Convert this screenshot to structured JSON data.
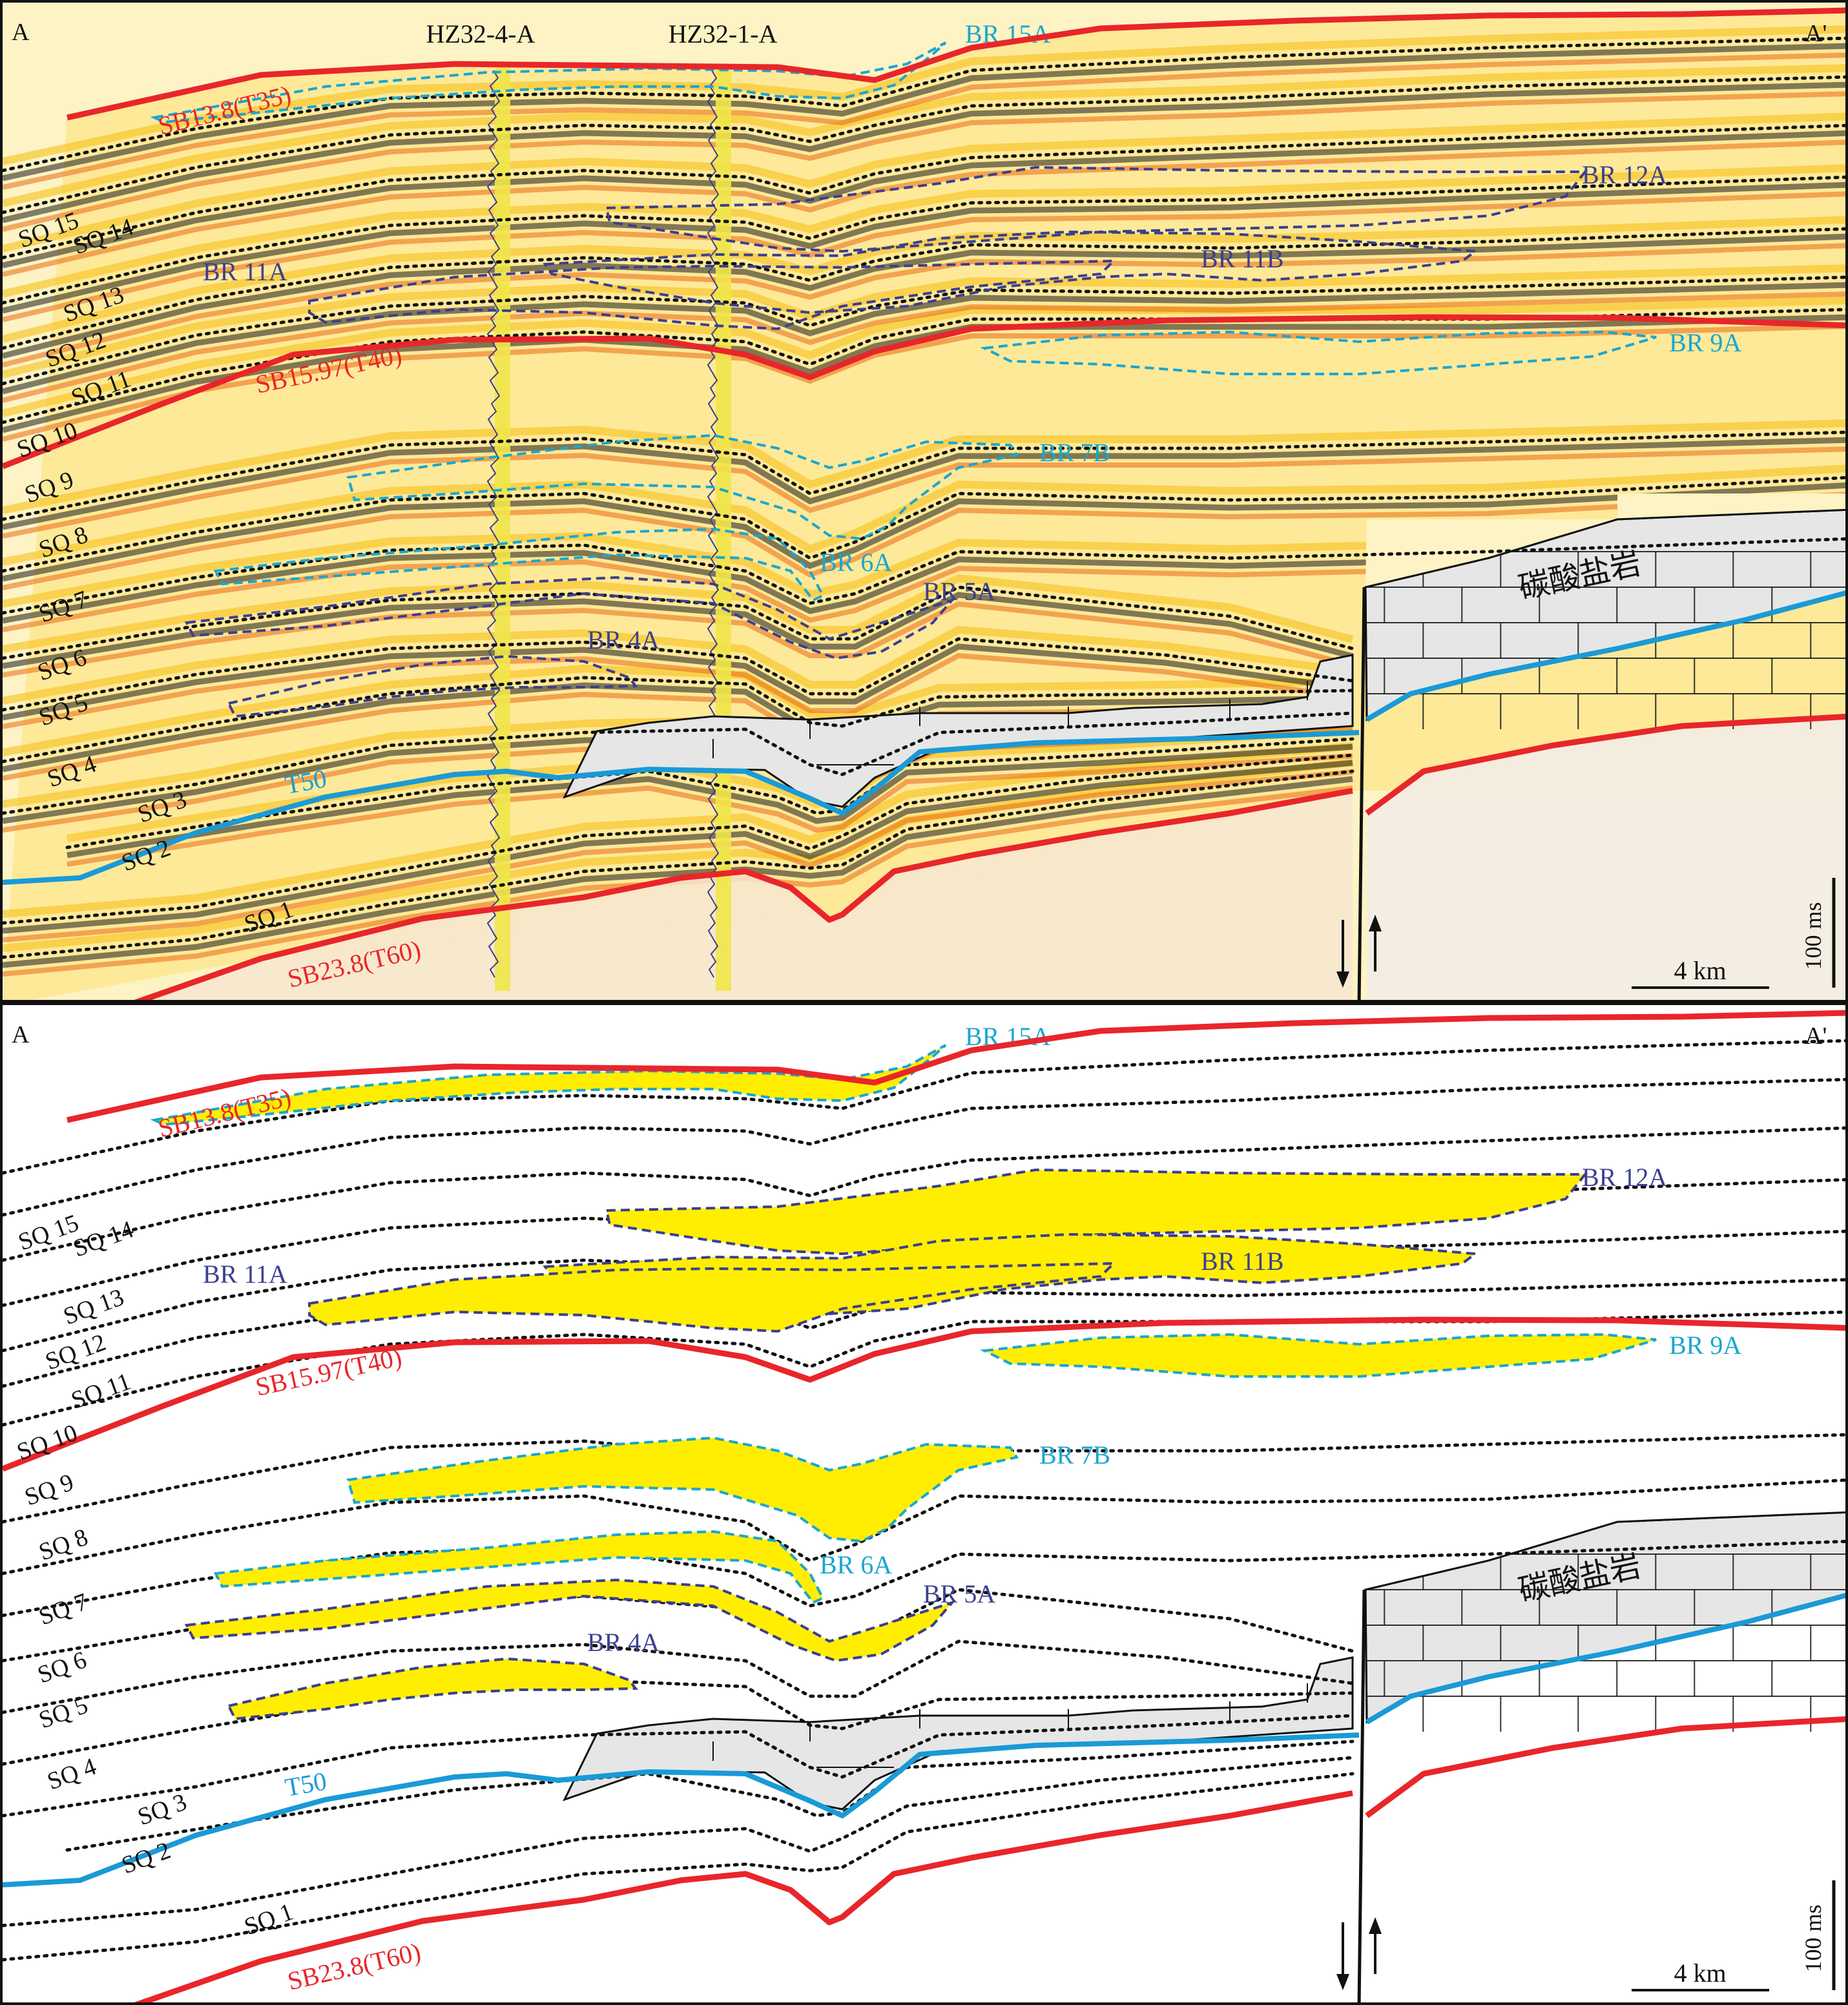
{
  "profile": {
    "start": "A",
    "end": "A'"
  },
  "wells": [
    "HZ32-4-A",
    "HZ32-1-A"
  ],
  "boundaries": {
    "sb13_8": "SB13.8(T35)",
    "sb15_97": "SB15.97(T40)",
    "t50": "T50",
    "sb23_8": "SB23.8(T60)"
  },
  "sequences": [
    "SQ 1",
    "SQ 2",
    "SQ 3",
    "SQ 4",
    "SQ 5",
    "SQ 6",
    "SQ 7",
    "SQ 8",
    "SQ 9",
    "SQ 10",
    "SQ 11",
    "SQ 12",
    "SQ 13",
    "SQ 14",
    "SQ 15"
  ],
  "bodies": {
    "br15a": "BR 15A",
    "br12a": "BR 12A",
    "br11a": "BR 11A",
    "br11b": "BR 11B",
    "br9a": "BR 9A",
    "br7b": "BR 7B",
    "br6a": "BR 6A",
    "br5a": "BR 5A",
    "br4a": "BR 4A"
  },
  "carbonate": "碳酸盐岩",
  "scale": {
    "time": "100 ms",
    "distance": "4 km"
  },
  "colors": {
    "boundary": "#e8262a",
    "t50": "#1a9ad6",
    "cyan_outline": "#1aa6d0",
    "navy_outline": "#3b3f8f",
    "fill": "#ffee00",
    "carbonate": "#e6e6e6"
  }
}
